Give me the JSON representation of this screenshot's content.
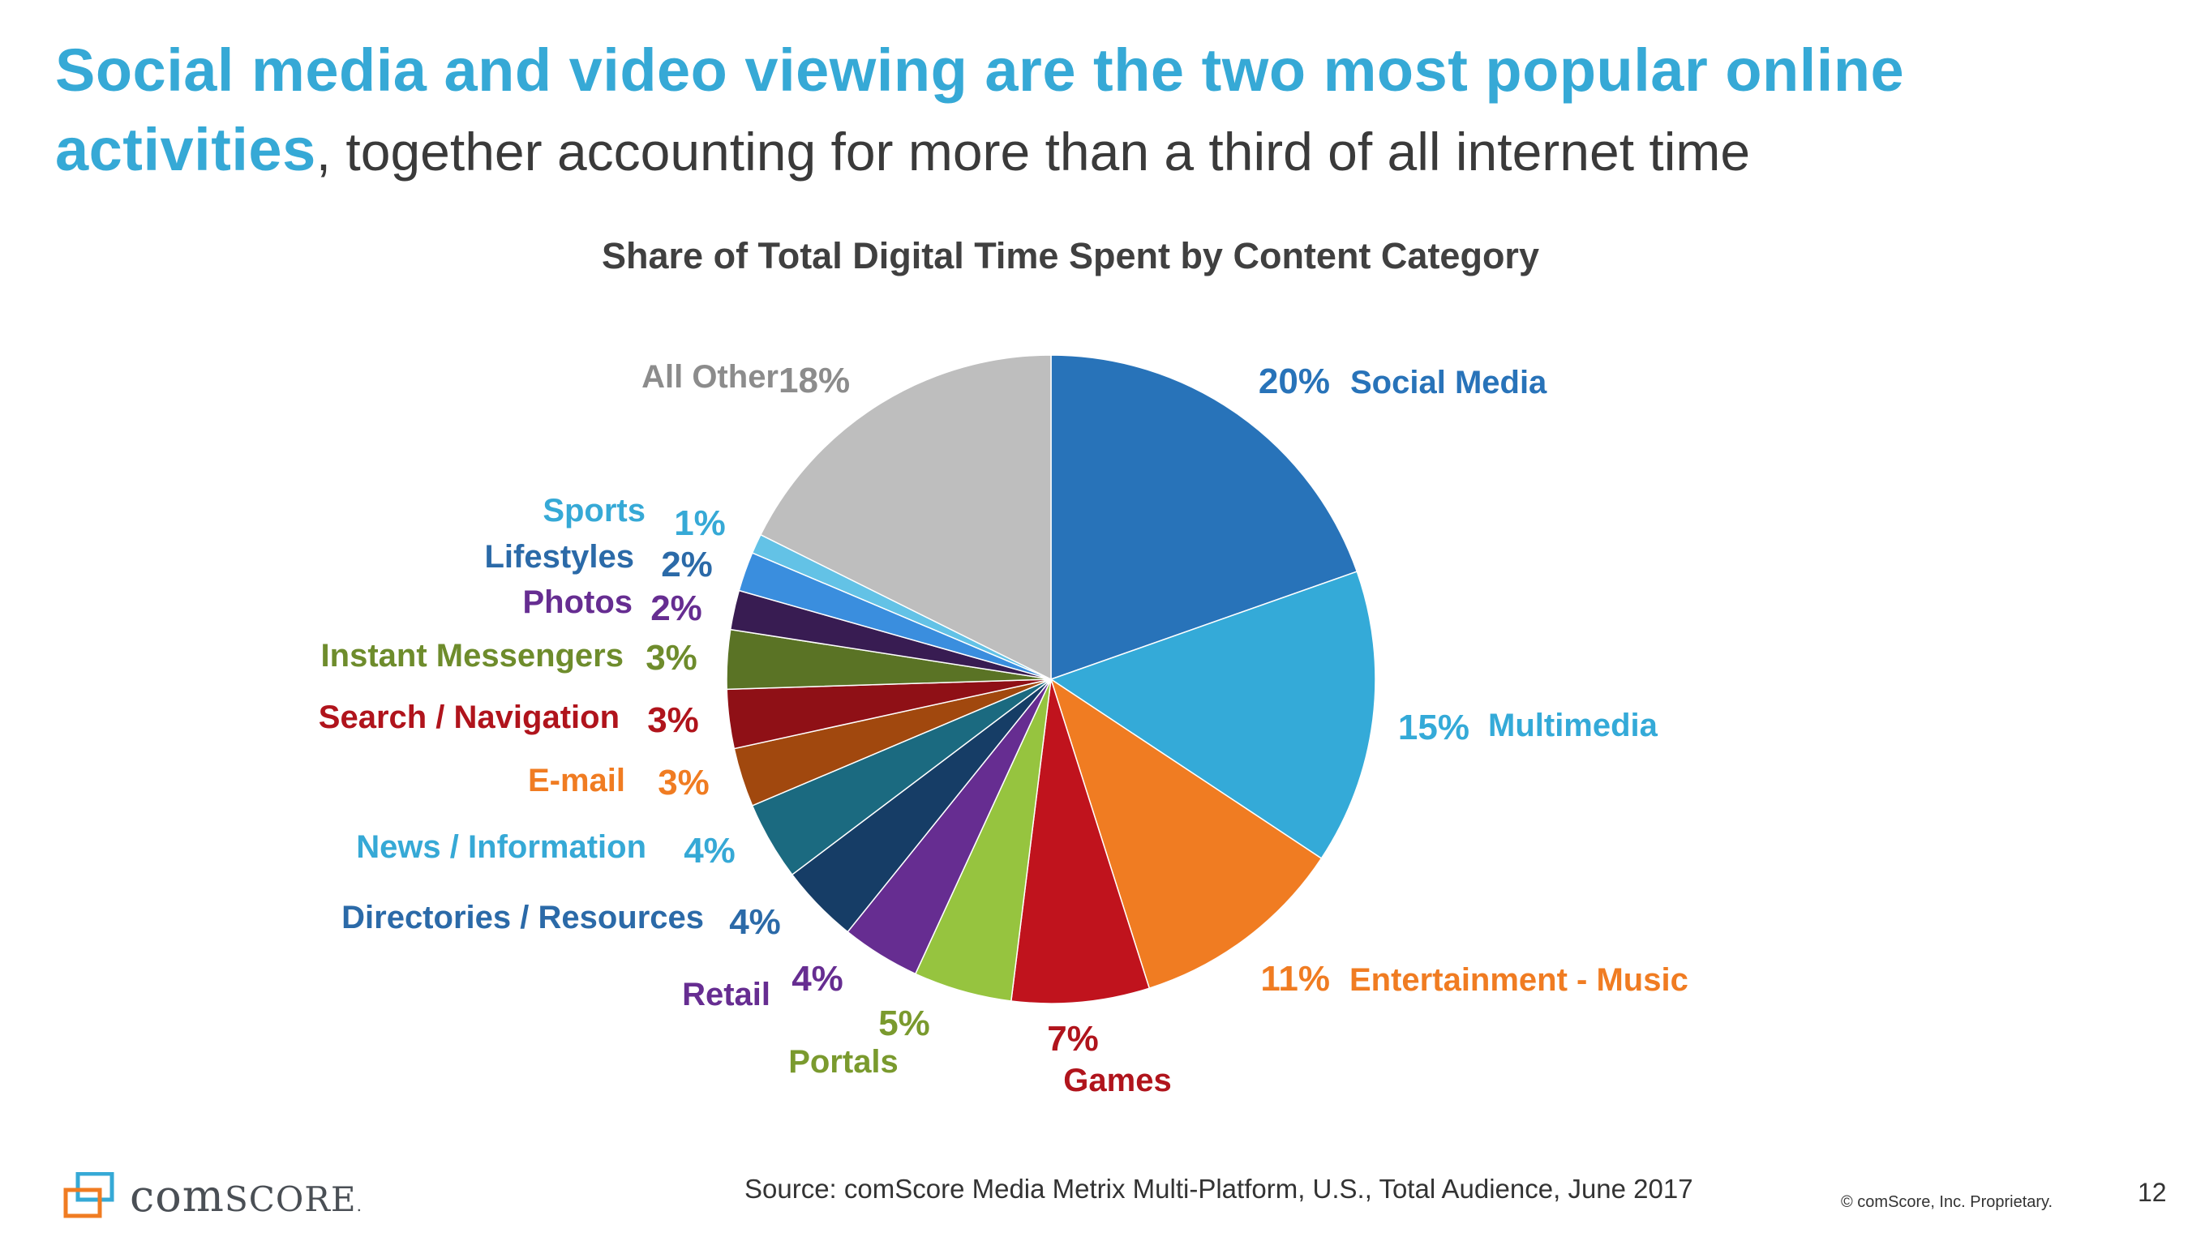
{
  "headline": {
    "bold": "Social media and video viewing are the two most popular online activities",
    "rest": ", together accounting for more than a third of all internet time"
  },
  "chart_data": {
    "type": "pie",
    "title": "Share of Total Digital Time Spent by Content Category",
    "slices": [
      {
        "label": "Social Media",
        "value": 20,
        "value_label": "20%",
        "color": "#2873b9"
      },
      {
        "label": "Multimedia",
        "value": 15,
        "value_label": "15%",
        "color": "#34aad8"
      },
      {
        "label": "Entertainment - Music",
        "value": 11,
        "value_label": "11%",
        "color": "#f07c22"
      },
      {
        "label": "Games",
        "value": 7,
        "value_label": "7%",
        "color": "#c0131d"
      },
      {
        "label": "Portals",
        "value": 5,
        "value_label": "5%",
        "color": "#96c43f"
      },
      {
        "label": "Retail",
        "value": 4,
        "value_label": "4%",
        "color": "#662d91"
      },
      {
        "label": "Directories / Resources",
        "value": 4,
        "value_label": "4%",
        "color": "#163d66"
      },
      {
        "label": "News / Information",
        "value": 4,
        "value_label": "4%",
        "color": "#1b6a80"
      },
      {
        "label": "E-mail",
        "value": 3,
        "value_label": "3%",
        "color": "#a1480e"
      },
      {
        "label": "Search / Navigation",
        "value": 3,
        "value_label": "3%",
        "color": "#8f1016"
      },
      {
        "label": "Instant Messengers",
        "value": 3,
        "value_label": "3%",
        "color": "#5a7325"
      },
      {
        "label": "Photos",
        "value": 2,
        "value_label": "2%",
        "color": "#381c52"
      },
      {
        "label": "Lifestyles",
        "value": 2,
        "value_label": "2%",
        "color": "#3a8ede"
      },
      {
        "label": "Sports",
        "value": 1,
        "value_label": "1%",
        "color": "#63c2e6"
      },
      {
        "label": "All Other",
        "value": 18,
        "value_label": "18%",
        "color": "#bebebe"
      }
    ],
    "label_colors": {
      "Social Media": "#2873b9",
      "Multimedia": "#34aad8",
      "Entertainment - Music": "#f07c22",
      "Games": "#b0141c",
      "Portals": "#7a9a2e",
      "Retail": "#662d91",
      "Directories / Resources": "#2b6aa8",
      "News / Information": "#36a9d6",
      "E-mail": "#f07c22",
      "Search / Navigation": "#b0141c",
      "Instant Messengers": "#6e8c2c",
      "Photos": "#662d91",
      "Lifestyles": "#2b6aa8",
      "Sports": "#36a9d6",
      "All Other": "#8c8c8c"
    },
    "legend": "none"
  },
  "footer": {
    "source": "Source: comScore Media Metrix Multi-Platform, U.S., Total Audience, June 2017",
    "copyright": "© comScore, Inc. Proprietary.",
    "page_number": "12",
    "logo_text": "comScore"
  }
}
